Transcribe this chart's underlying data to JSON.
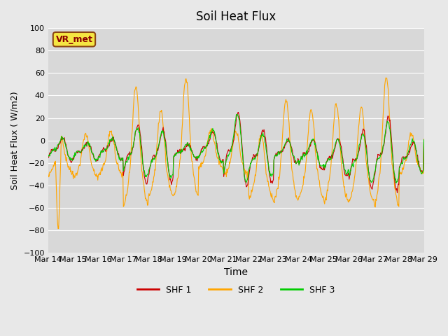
{
  "title": "Soil Heat Flux",
  "xlabel": "Time",
  "ylabel": "Soil Heat Flux ( W/m2)",
  "ylim": [
    -100,
    100
  ],
  "yticks": [
    -100,
    -80,
    -60,
    -40,
    -20,
    0,
    20,
    40,
    60,
    80,
    100
  ],
  "xtick_labels": [
    "Mar 14",
    "Mar 15",
    "Mar 16",
    "Mar 17",
    "Mar 18",
    "Mar 19",
    "Mar 20",
    "Mar 21",
    "Mar 22",
    "Mar 23",
    "Mar 24",
    "Mar 25",
    "Mar 26",
    "Mar 27",
    "Mar 28",
    "Mar 29"
  ],
  "color_shf1": "#cc0000",
  "color_shf2": "#ffa500",
  "color_shf3": "#00cc00",
  "legend_labels": [
    "SHF 1",
    "SHF 2",
    "SHF 3"
  ],
  "station_label": "VR_met",
  "n_days": 15,
  "pts_per_day": 48
}
